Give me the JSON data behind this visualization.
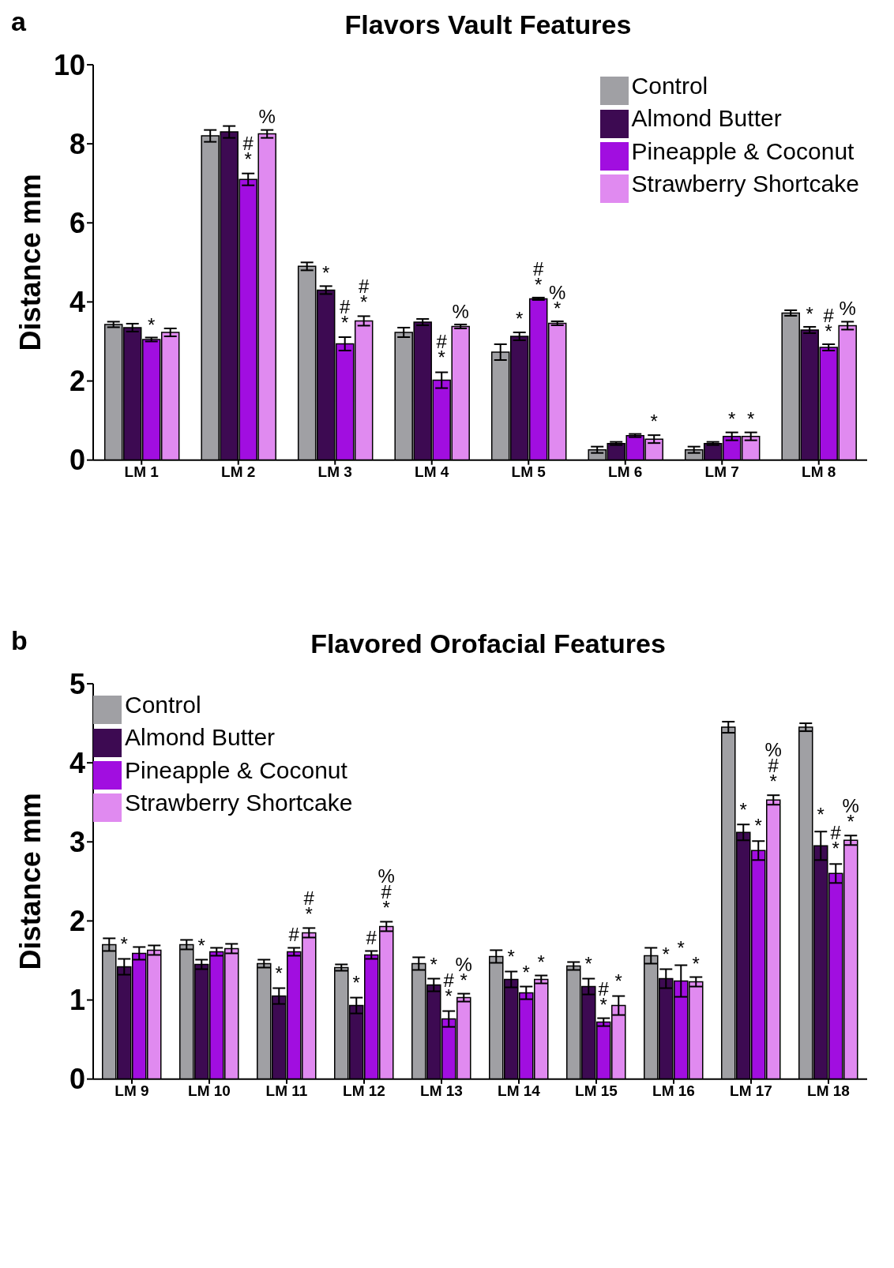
{
  "chart_data": [
    {
      "type": "bar",
      "title": "Flavors Vault Features",
      "ylabel": "Distance mm",
      "annotations": [
        "a"
      ],
      "categories": [
        "LM 1",
        "LM 2",
        "LM 3",
        "LM 4",
        "LM 5",
        "LM 6",
        "LM 7",
        "LM 8"
      ],
      "ylim": [
        0,
        10
      ],
      "yticks": [
        0,
        2,
        4,
        6,
        8,
        10
      ],
      "legend": "top right",
      "series": [
        {
          "name": "Control",
          "color": "#a0a0a4",
          "values": [
            3.43,
            8.2,
            4.9,
            3.23,
            2.73,
            0.26,
            0.26,
            3.72
          ],
          "errors": [
            0.07,
            0.15,
            0.1,
            0.12,
            0.2,
            0.08,
            0.08,
            0.07
          ],
          "value_labels": [
            null,
            null,
            null,
            null,
            null,
            null,
            null,
            null
          ]
        },
        {
          "name": "Almond Butter",
          "color": "#3d0a52",
          "values": [
            3.35,
            8.3,
            4.3,
            3.49,
            3.13,
            0.42,
            0.42,
            3.29
          ],
          "errors": [
            0.1,
            0.15,
            0.1,
            0.08,
            0.1,
            0.04,
            0.04,
            0.08
          ],
          "value_labels": [
            null,
            null,
            "*",
            null,
            "*",
            null,
            null,
            "*"
          ]
        },
        {
          "name": "Pineapple & Coconut",
          "color": "#a10ee0",
          "values": [
            3.05,
            7.1,
            2.94,
            2.02,
            4.08,
            0.62,
            0.6,
            2.85
          ],
          "errors": [
            0.05,
            0.15,
            0.17,
            0.2,
            0.03,
            0.04,
            0.1,
            0.08
          ],
          "value_labels": [
            "*",
            "#\n*",
            "#\n*",
            "#\n*",
            "#\n*",
            null,
            "*",
            "#\n*"
          ]
        },
        {
          "name": "Strawberry Shortcake",
          "color": "#e08af0",
          "values": [
            3.23,
            8.25,
            3.52,
            3.38,
            3.46,
            0.53,
            0.6,
            3.4
          ],
          "errors": [
            0.1,
            0.1,
            0.12,
            0.05,
            0.05,
            0.1,
            0.1,
            0.1
          ],
          "value_labels": [
            null,
            "%",
            "#\n*",
            "%",
            "%\n*",
            "*",
            "*",
            "%"
          ]
        }
      ]
    },
    {
      "type": "bar",
      "title": "Flavored Orofacial Features",
      "ylabel": "Distance mm",
      "annotations": [
        "b"
      ],
      "categories": [
        "LM 9",
        "LM 10",
        "LM 11",
        "LM 12",
        "LM 13",
        "LM 14",
        "LM 15",
        "LM 16",
        "LM 17",
        "LM 18"
      ],
      "ylim": [
        0,
        5
      ],
      "yticks": [
        0,
        1,
        2,
        3,
        4,
        5
      ],
      "legend": "top left",
      "series": [
        {
          "name": "Control",
          "color": "#a0a0a4",
          "values": [
            1.7,
            1.7,
            1.46,
            1.41,
            1.46,
            1.55,
            1.43,
            1.56,
            4.45,
            4.45
          ],
          "errors": [
            0.08,
            0.06,
            0.05,
            0.04,
            0.08,
            0.08,
            0.05,
            0.1,
            0.07,
            0.05
          ],
          "value_labels": [
            null,
            null,
            null,
            null,
            null,
            null,
            null,
            null,
            null,
            null
          ]
        },
        {
          "name": "Almond Butter",
          "color": "#3d0a52",
          "values": [
            1.42,
            1.45,
            1.05,
            0.93,
            1.19,
            1.26,
            1.17,
            1.27,
            3.12,
            2.95
          ],
          "errors": [
            0.1,
            0.06,
            0.1,
            0.1,
            0.08,
            0.1,
            0.1,
            0.12,
            0.1,
            0.18
          ],
          "value_labels": [
            "*",
            "*",
            "*",
            "*",
            "*",
            "*",
            "*",
            "*",
            "*",
            "*"
          ]
        },
        {
          "name": "Pineapple & Coconut",
          "color": "#a10ee0",
          "values": [
            1.59,
            1.61,
            1.61,
            1.57,
            0.76,
            1.09,
            0.72,
            1.24,
            2.89,
            2.6
          ],
          "errors": [
            0.08,
            0.05,
            0.05,
            0.05,
            0.1,
            0.08,
            0.05,
            0.2,
            0.12,
            0.12
          ],
          "value_labels": [
            null,
            null,
            "#",
            "#",
            "#\n*",
            "*",
            "#\n*",
            "*",
            "*",
            "#\n*"
          ]
        },
        {
          "name": "Strawberry Shortcake",
          "color": "#e08af0",
          "values": [
            1.63,
            1.65,
            1.85,
            1.93,
            1.03,
            1.26,
            0.93,
            1.23,
            3.53,
            3.02
          ],
          "errors": [
            0.06,
            0.06,
            0.06,
            0.06,
            0.05,
            0.05,
            0.12,
            0.06,
            0.06,
            0.06
          ],
          "value_labels": [
            null,
            null,
            "#\n*",
            "%\n#\n*",
            "%\n*",
            "*",
            "*",
            "*",
            "%\n#\n*",
            "%\n*"
          ]
        }
      ]
    }
  ]
}
